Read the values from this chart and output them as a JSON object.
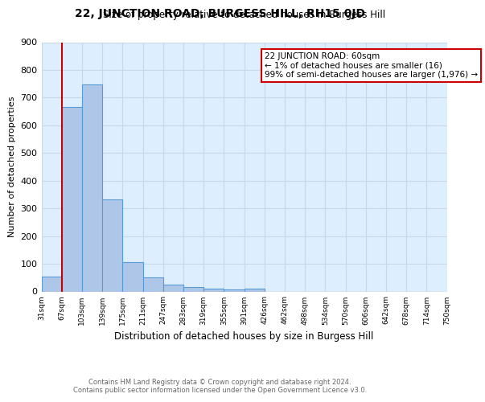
{
  "title": "22, JUNCTION ROAD, BURGESS HILL, RH15 0JD",
  "subtitle": "Size of property relative to detached houses in Burgess Hill",
  "xlabel": "Distribution of detached houses by size in Burgess Hill",
  "ylabel": "Number of detached properties",
  "bar_values": [
    55,
    665,
    748,
    333,
    106,
    52,
    25,
    15,
    10,
    8,
    10,
    0,
    0,
    0,
    0,
    0,
    0,
    0,
    0,
    0
  ],
  "bar_labels": [
    "31sqm",
    "67sqm",
    "103sqm",
    "139sqm",
    "175sqm",
    "211sqm",
    "247sqm",
    "283sqm",
    "319sqm",
    "355sqm",
    "391sqm",
    "426sqm",
    "462sqm",
    "498sqm",
    "534sqm",
    "570sqm",
    "606sqm",
    "642sqm",
    "678sqm",
    "714sqm",
    "750sqm"
  ],
  "bar_color": "#aec6e8",
  "bar_edge_color": "#5b9bd5",
  "annotation_box_text": "22 JUNCTION ROAD: 60sqm\n← 1% of detached houses are smaller (16)\n99% of semi-detached houses are larger (1,976) →",
  "annotation_box_color": "#cc0000",
  "ylim": [
    0,
    900
  ],
  "yticks": [
    0,
    100,
    200,
    300,
    400,
    500,
    600,
    700,
    800,
    900
  ],
  "grid_color": "#c8d8e8",
  "footer_text": "Contains HM Land Registry data © Crown copyright and database right 2024.\nContains public sector information licensed under the Open Government Licence v3.0.",
  "fig_bg_color": "#ffffff",
  "plot_bg_color": "#ddeeff"
}
